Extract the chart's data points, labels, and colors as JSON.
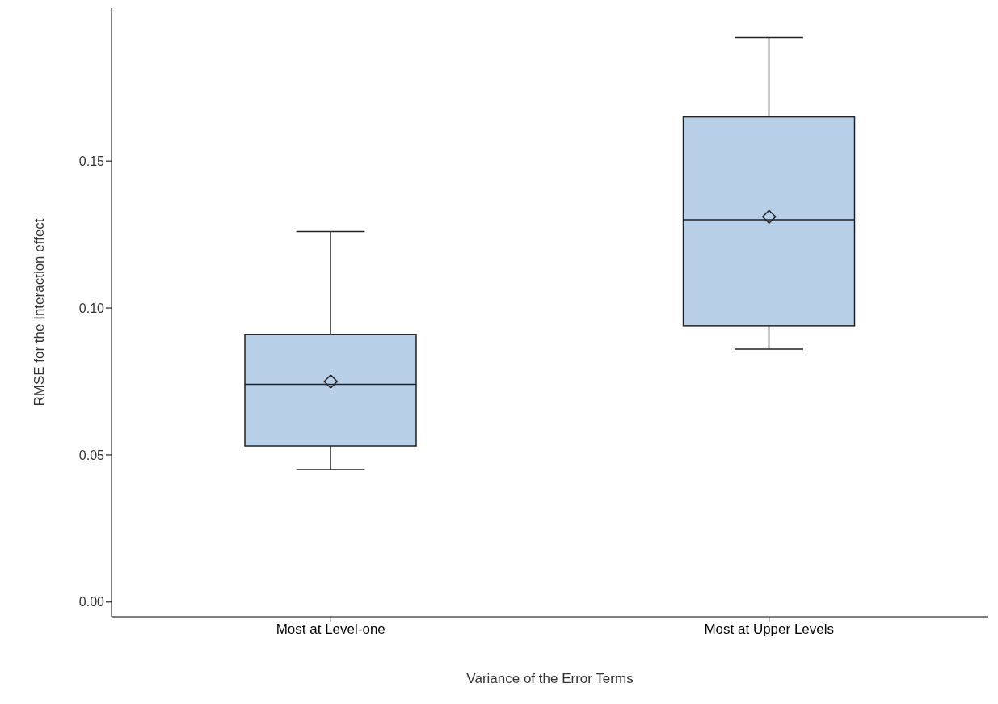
{
  "chart_data": {
    "type": "box",
    "xlabel": "Variance of the Error Terms",
    "ylabel": "RMSE for the Interaction effect",
    "categories": [
      "Most at Level-one",
      "Most at Upper Levels"
    ],
    "boxes": [
      {
        "low": 0.045,
        "q1": 0.053,
        "median": 0.074,
        "q3": 0.091,
        "high": 0.126,
        "mean": 0.075
      },
      {
        "low": 0.086,
        "q1": 0.094,
        "median": 0.13,
        "q3": 0.165,
        "high": 0.192,
        "mean": 0.131
      }
    ],
    "color": "#b8cfe8",
    "marker": "diamond",
    "ylim": [
      -0.005,
      0.202
    ],
    "yticks": [
      {
        "value": 0,
        "label": "0.00"
      },
      {
        "value": 0.05,
        "label": "0.05"
      },
      {
        "value": 0.1,
        "label": "0.10"
      },
      {
        "value": 0.15,
        "label": "0.15"
      }
    ]
  }
}
